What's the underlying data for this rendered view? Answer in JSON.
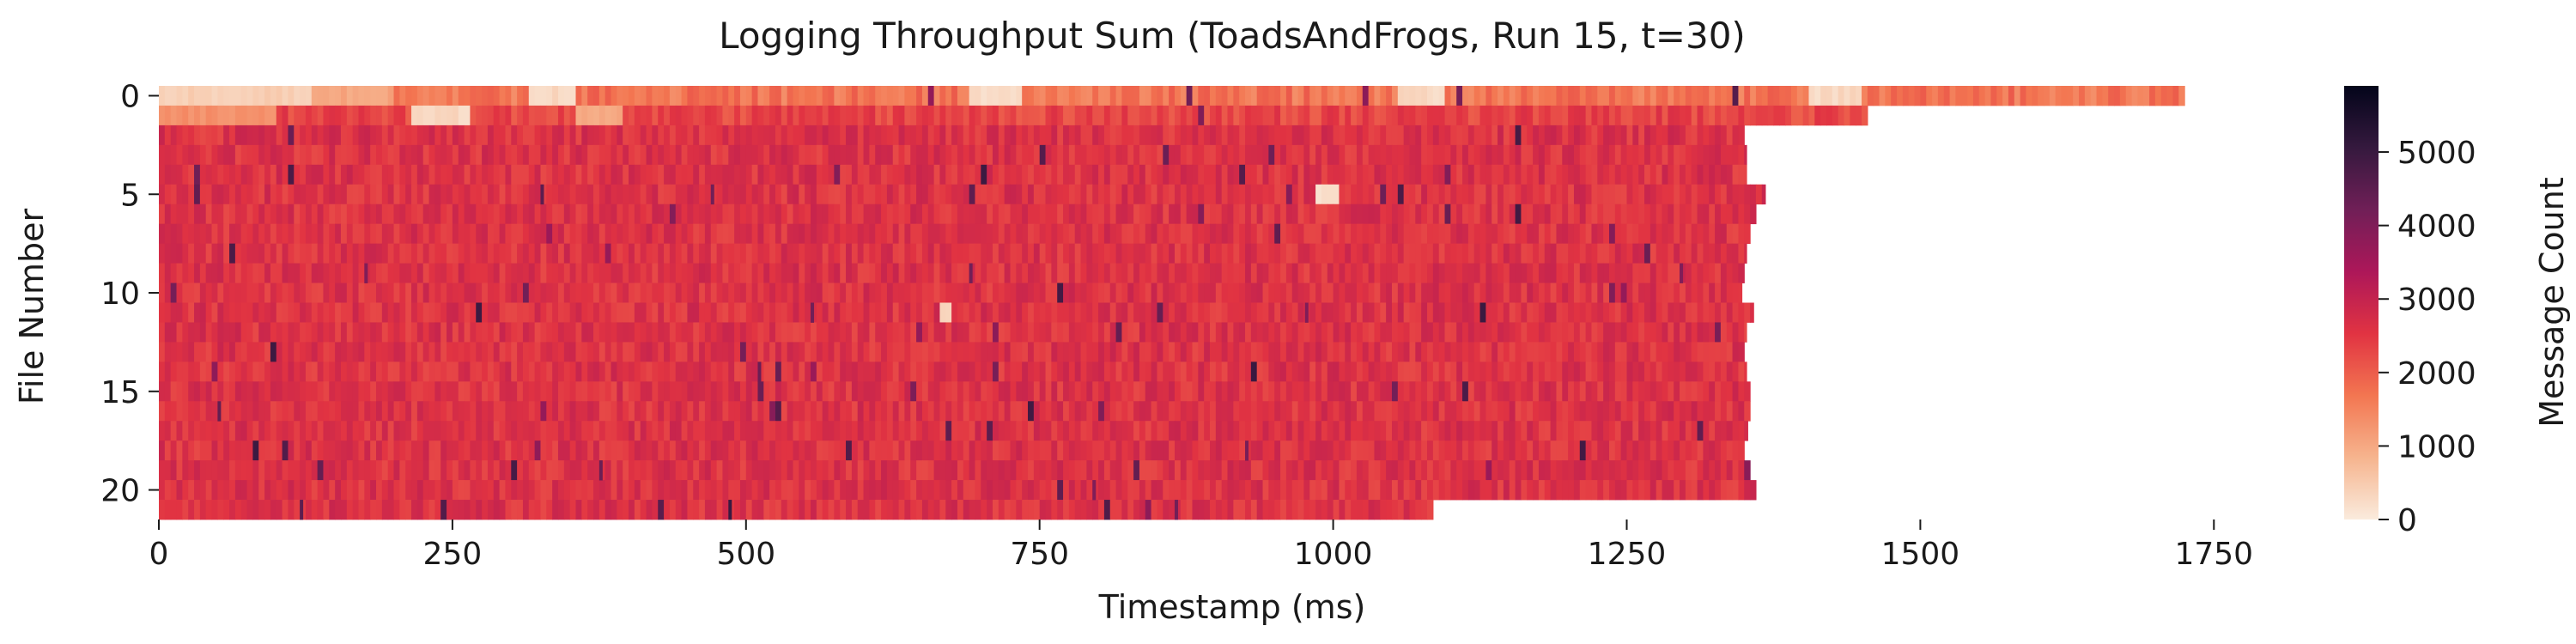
{
  "chart_data": {
    "type": "heatmap",
    "title": "Logging Throughput Sum (ToadsAndFrogs, Run 15, t=30)",
    "xlabel": "Timestamp (ms)",
    "ylabel": "File Number",
    "xlim": [
      0,
      1790
    ],
    "ylim": [
      0,
      22
    ],
    "x_ticks": [
      0,
      250,
      500,
      750,
      1000,
      1250,
      1500,
      1750
    ],
    "x_tick_labels": [
      "0",
      "250",
      "500",
      "750",
      "1000",
      "1250",
      "1500",
      "1750"
    ],
    "y_ticks": [
      0,
      5,
      10,
      15,
      20
    ],
    "y_tick_labels": [
      "0",
      "5",
      "10",
      "15",
      "20"
    ],
    "colorbar": {
      "label": "Message Count",
      "min": 0,
      "max": 5900,
      "ticks": [
        0,
        1000,
        2000,
        3000,
        4000,
        5000
      ],
      "tick_labels": [
        "0",
        "1000",
        "2000",
        "3000",
        "4000",
        "5000"
      ],
      "colors": [
        "#faebdd",
        "#f6b48e",
        "#f37651",
        "#e13342",
        "#ad1759",
        "#701f57",
        "#35193e",
        "#03051a"
      ]
    },
    "typical_value": 2600,
    "rows": [
      {
        "file": 0,
        "end_ms": 1725,
        "mean": 1700
      },
      {
        "file": 1,
        "end_ms": 1455,
        "mean": 2300
      },
      {
        "file": 2,
        "end_ms": 1350,
        "mean": 2600
      },
      {
        "file": 3,
        "end_ms": 1352,
        "mean": 2600
      },
      {
        "file": 4,
        "end_ms": 1352,
        "mean": 2600
      },
      {
        "file": 5,
        "end_ms": 1368,
        "mean": 2600
      },
      {
        "file": 6,
        "end_ms": 1360,
        "mean": 2600
      },
      {
        "file": 7,
        "end_ms": 1355,
        "mean": 2600
      },
      {
        "file": 8,
        "end_ms": 1352,
        "mean": 2600
      },
      {
        "file": 9,
        "end_ms": 1350,
        "mean": 2600
      },
      {
        "file": 10,
        "end_ms": 1348,
        "mean": 2600
      },
      {
        "file": 11,
        "end_ms": 1358,
        "mean": 2600
      },
      {
        "file": 12,
        "end_ms": 1352,
        "mean": 2600
      },
      {
        "file": 13,
        "end_ms": 1350,
        "mean": 2600
      },
      {
        "file": 14,
        "end_ms": 1352,
        "mean": 2600
      },
      {
        "file": 15,
        "end_ms": 1355,
        "mean": 2600
      },
      {
        "file": 16,
        "end_ms": 1355,
        "mean": 2600
      },
      {
        "file": 17,
        "end_ms": 1353,
        "mean": 2600
      },
      {
        "file": 18,
        "end_ms": 1350,
        "mean": 2600
      },
      {
        "file": 19,
        "end_ms": 1355,
        "mean": 2600
      },
      {
        "file": 20,
        "end_ms": 1360,
        "mean": 2600
      },
      {
        "file": 21,
        "end_ms": 1085,
        "mean": 2600
      }
    ],
    "low_regions": [
      {
        "file": 0,
        "from_ms": 0,
        "to_ms": 130,
        "value": 300
      },
      {
        "file": 0,
        "from_ms": 130,
        "to_ms": 200,
        "value": 900
      },
      {
        "file": 0,
        "from_ms": 315,
        "to_ms": 355,
        "value": 150
      },
      {
        "file": 0,
        "from_ms": 690,
        "to_ms": 735,
        "value": 150
      },
      {
        "file": 0,
        "from_ms": 1052,
        "to_ms": 1092,
        "value": 150
      },
      {
        "file": 0,
        "from_ms": 1405,
        "to_ms": 1450,
        "value": 150
      },
      {
        "file": 1,
        "from_ms": 0,
        "to_ms": 100,
        "value": 1200
      },
      {
        "file": 1,
        "from_ms": 215,
        "to_ms": 265,
        "value": 150
      },
      {
        "file": 1,
        "from_ms": 355,
        "to_ms": 395,
        "value": 900
      },
      {
        "file": 5,
        "from_ms": 985,
        "to_ms": 1003,
        "value": 100
      },
      {
        "file": 11,
        "from_ms": 663,
        "to_ms": 672,
        "value": 150
      }
    ],
    "high_spikes": [
      {
        "file": 5,
        "at_ms": 325,
        "value": 4500
      },
      {
        "file": 5,
        "at_ms": 470,
        "value": 4200
      },
      {
        "file": 9,
        "at_ms": 175,
        "value": 4000
      },
      {
        "file": 9,
        "at_ms": 690,
        "value": 4200
      },
      {
        "file": 9,
        "at_ms": 1295,
        "value": 4000
      },
      {
        "file": 11,
        "at_ms": 555,
        "value": 4200
      },
      {
        "file": 11,
        "at_ms": 976,
        "value": 4000
      },
      {
        "file": 14,
        "at_ms": 510,
        "value": 4300
      },
      {
        "file": 16,
        "at_ms": 50,
        "value": 4400
      },
      {
        "file": 18,
        "at_ms": 925,
        "value": 4100
      },
      {
        "file": 19,
        "at_ms": 375,
        "value": 4300
      },
      {
        "file": 20,
        "at_ms": 795,
        "value": 4000
      },
      {
        "file": 21,
        "at_ms": 120,
        "value": 4500
      },
      {
        "file": 21,
        "at_ms": 485,
        "value": 5000
      },
      {
        "file": 21,
        "at_ms": 865,
        "value": 4200
      }
    ]
  }
}
